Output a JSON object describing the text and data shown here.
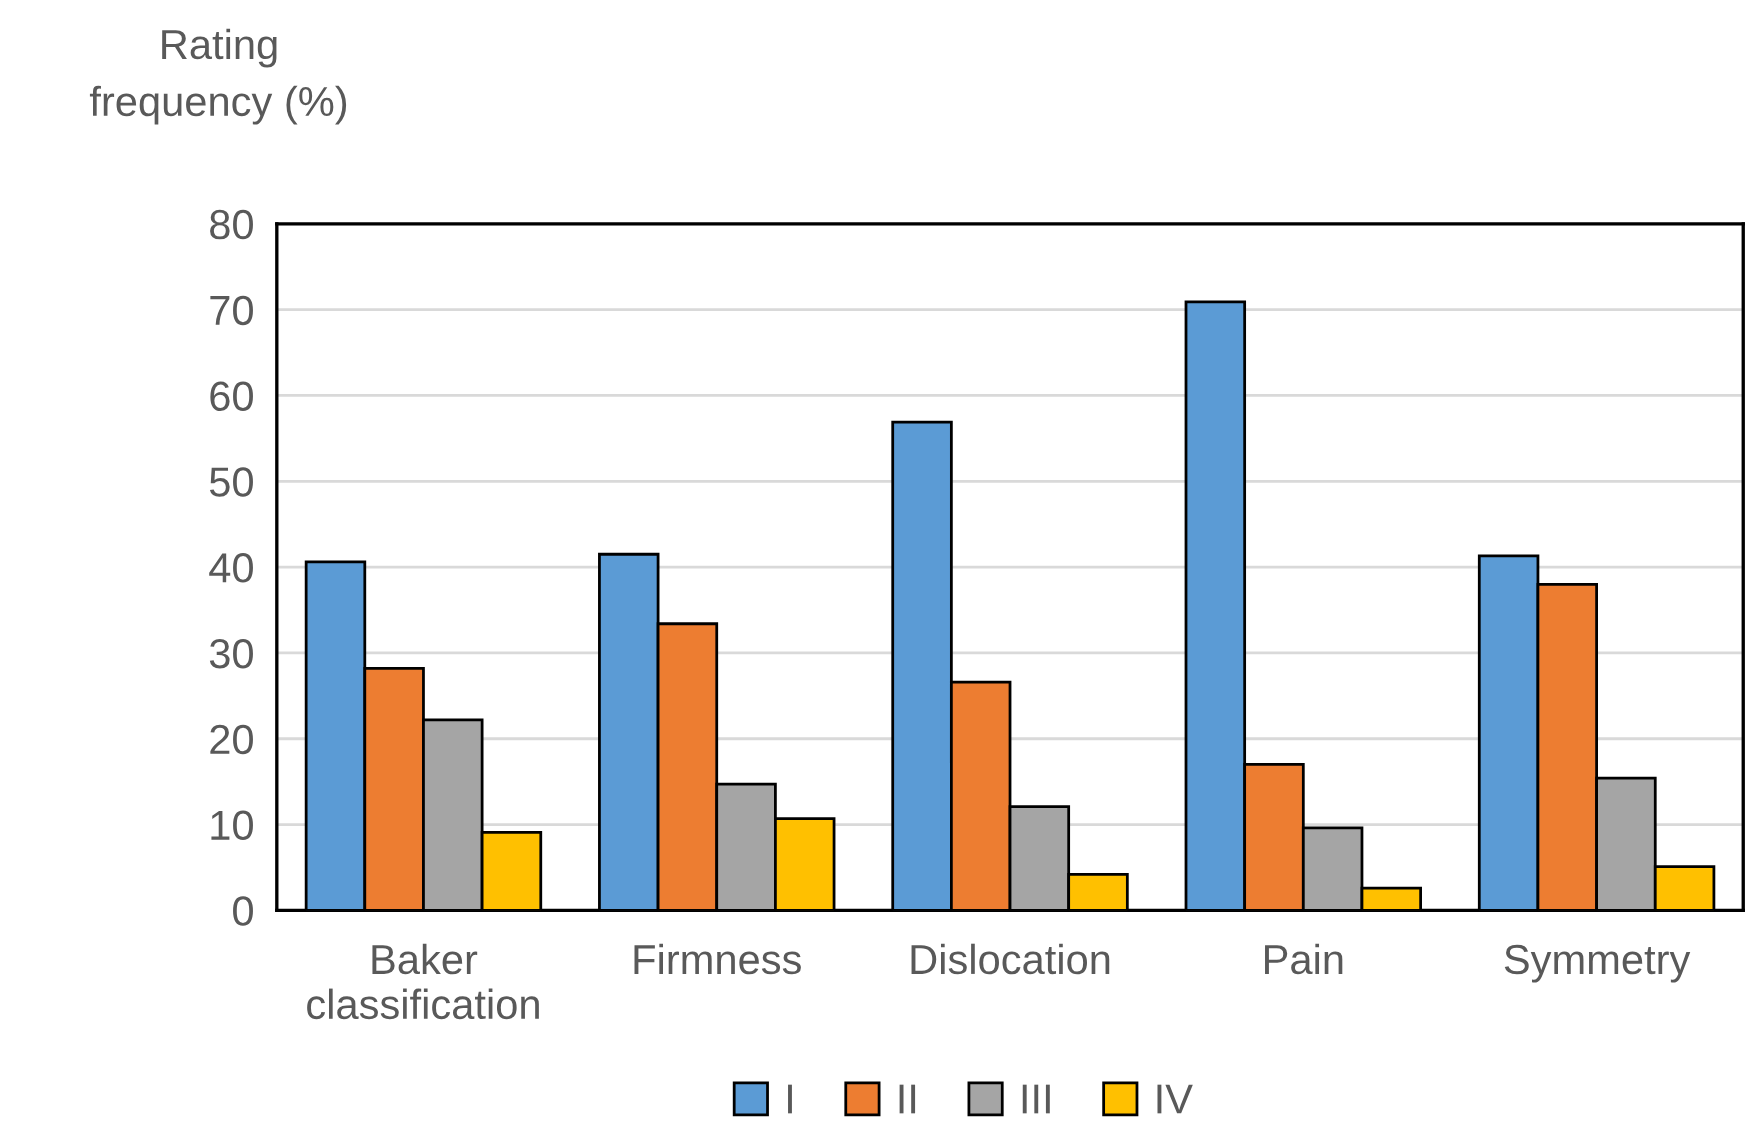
{
  "chart_data": {
    "type": "bar",
    "ylabel": "Rating\nfrequency (%)",
    "categories": [
      "Baker\nclassification",
      "Firmness",
      "Dislocation",
      "Pain",
      "Symmetry"
    ],
    "series": [
      {
        "name": "I",
        "color": "#5b9bd5",
        "values": [
          40.6,
          41.5,
          56.9,
          70.9,
          41.3
        ]
      },
      {
        "name": "II",
        "color": "#ed7d31",
        "values": [
          28.2,
          33.4,
          26.6,
          17.0,
          38.0
        ]
      },
      {
        "name": "III",
        "color": "#a5a5a5",
        "values": [
          22.2,
          14.7,
          12.1,
          9.6,
          15.4
        ]
      },
      {
        "name": "IV",
        "color": "#ffc000",
        "values": [
          9.1,
          10.7,
          4.2,
          2.6,
          5.1
        ]
      }
    ],
    "ylim": [
      0,
      80
    ],
    "yticks": [
      0,
      10,
      20,
      30,
      40,
      50,
      60,
      70,
      80
    ],
    "grid": "y",
    "legend": "bottom"
  }
}
